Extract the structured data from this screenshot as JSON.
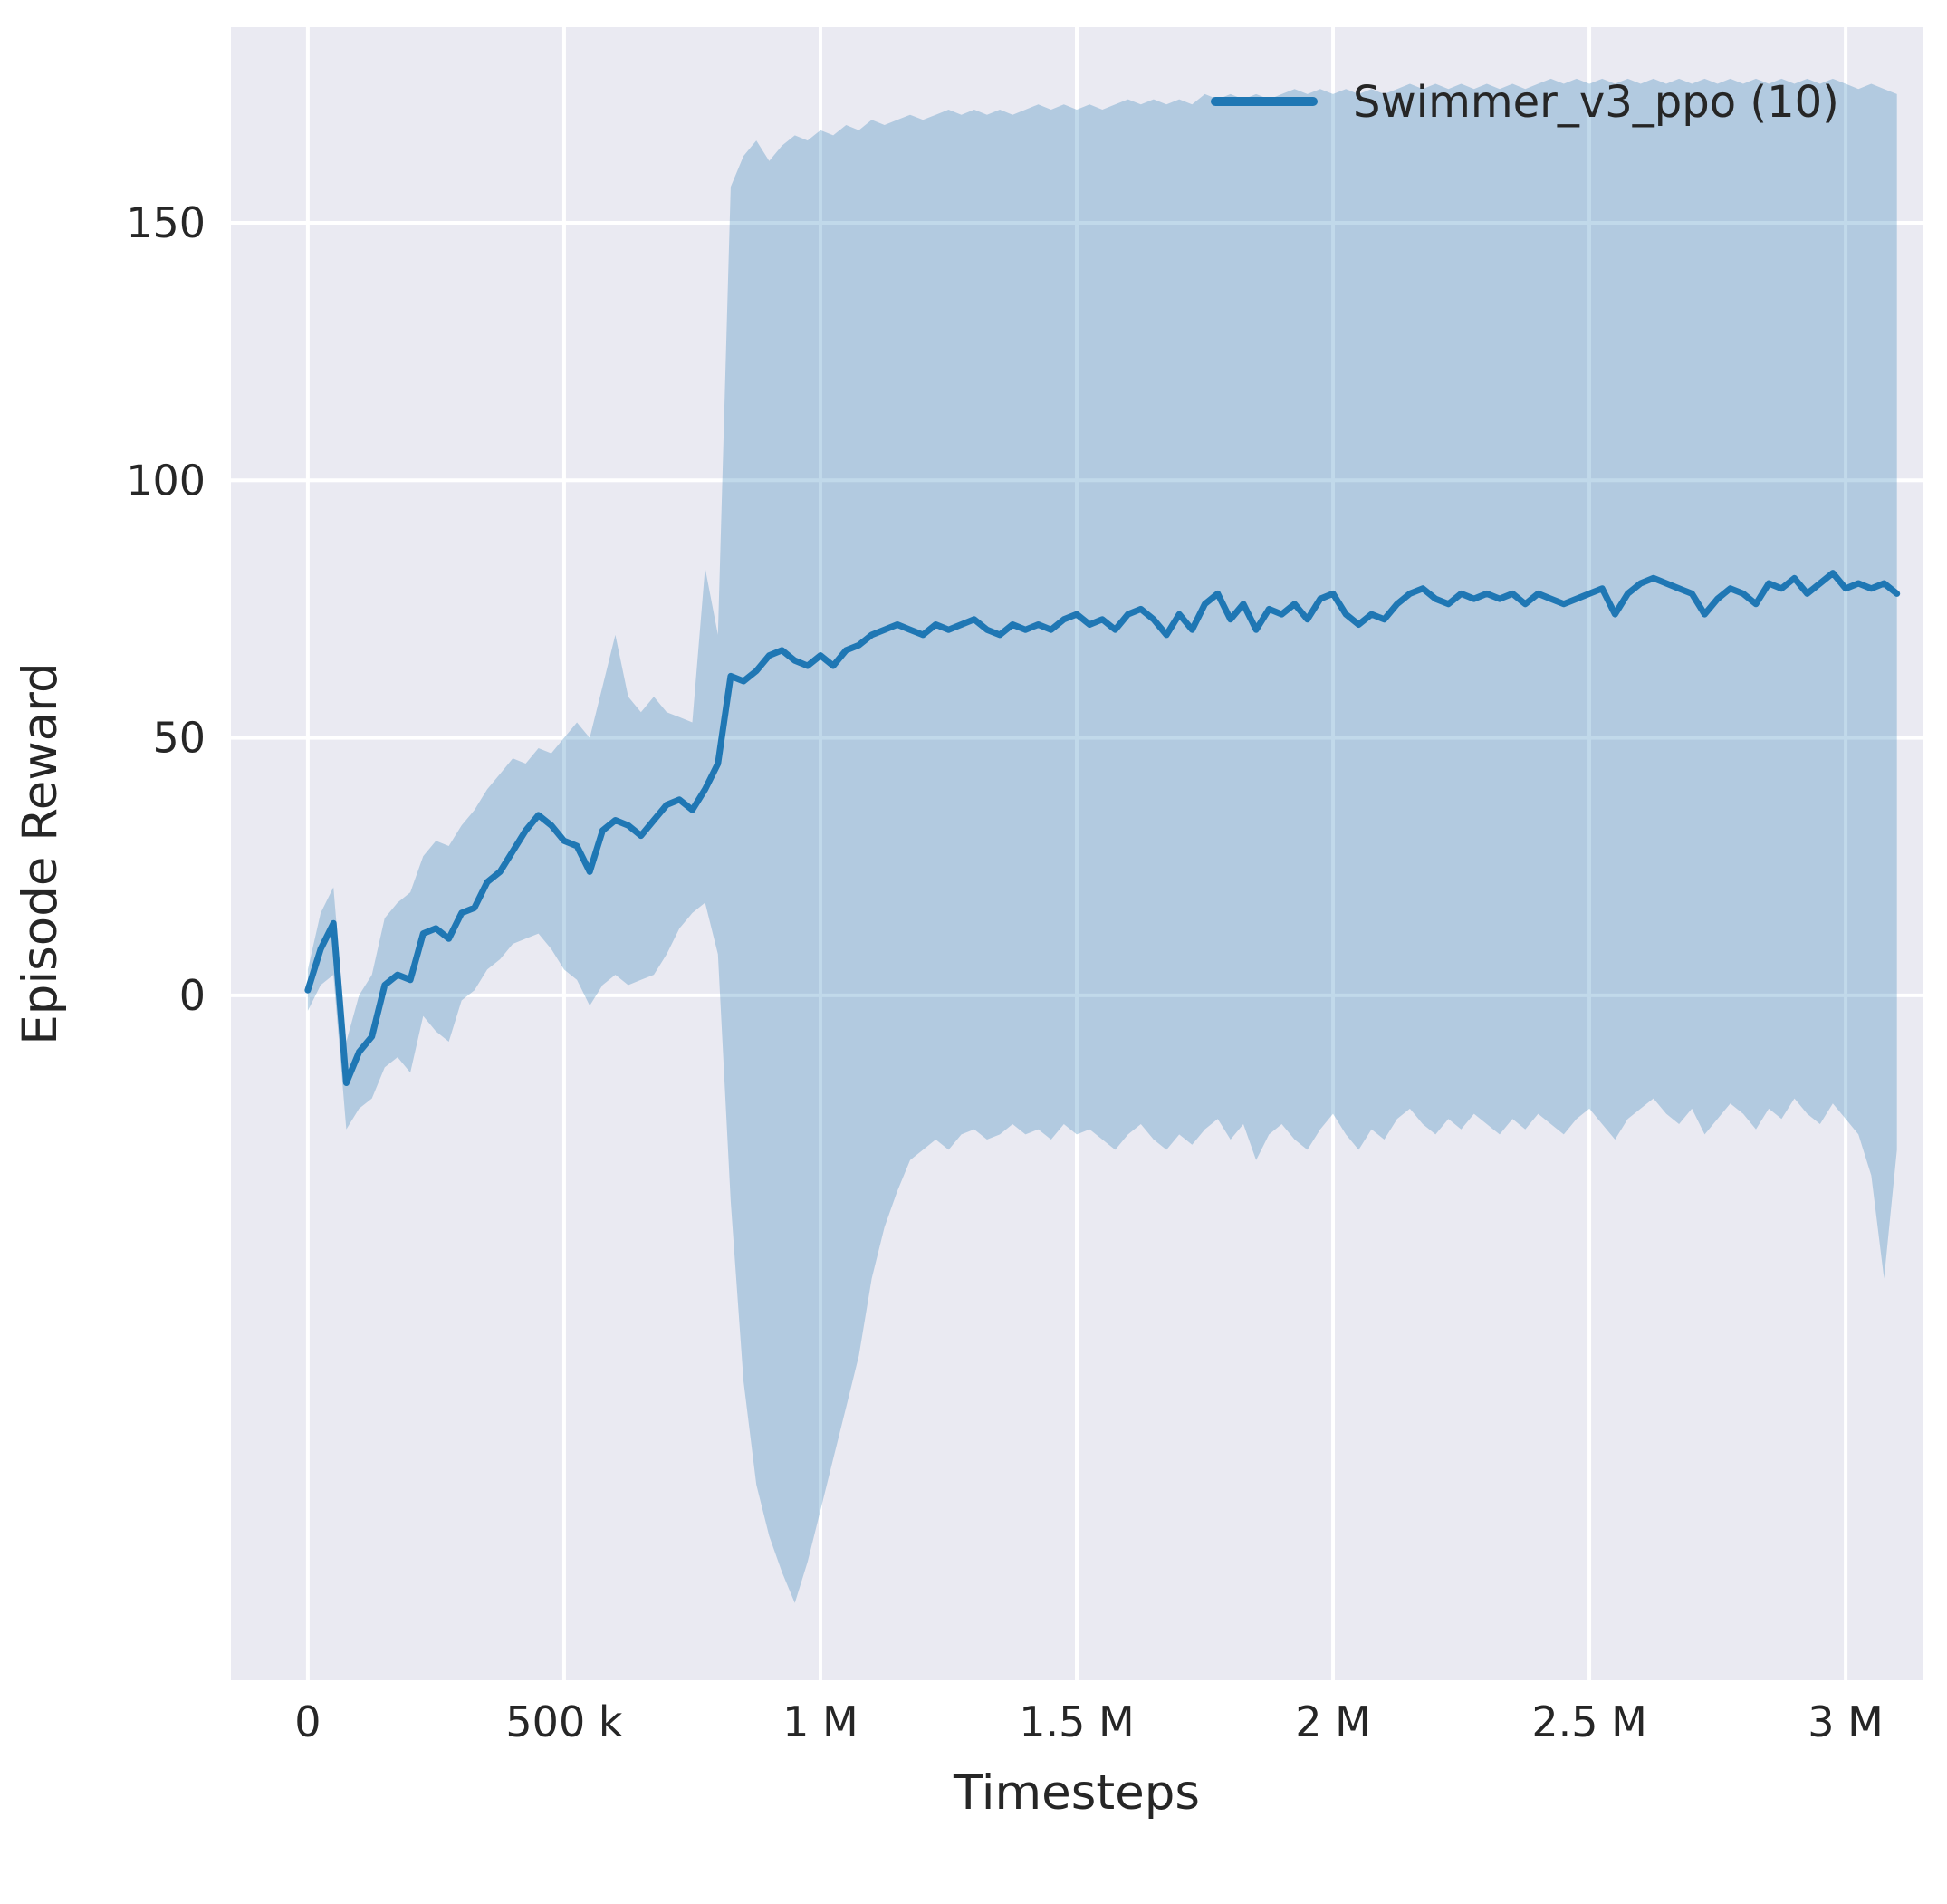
{
  "figure": {
    "background": "#ffffff",
    "axes_background": "#eaeaf2",
    "grid_color": "#ffffff",
    "text_color": "#262626",
    "accent_color": "#1f77b4"
  },
  "chart_data": {
    "type": "line",
    "title": "",
    "xlabel": "Timesteps",
    "ylabel": "Episode Reward",
    "xlim": [
      -150000,
      3150000
    ],
    "ylim": [
      -133,
      188
    ],
    "grid": true,
    "xticks": [
      {
        "value": 0,
        "label": "0"
      },
      {
        "value": 500000,
        "label": "500 k"
      },
      {
        "value": 1000000,
        "label": "1 M"
      },
      {
        "value": 1500000,
        "label": "1.5 M"
      },
      {
        "value": 2000000,
        "label": "2 M"
      },
      {
        "value": 2500000,
        "label": "2.5 M"
      },
      {
        "value": 3000000,
        "label": "3 M"
      }
    ],
    "yticks": [
      {
        "value": 0,
        "label": "0"
      },
      {
        "value": 50,
        "label": "50"
      },
      {
        "value": 100,
        "label": "100"
      },
      {
        "value": 150,
        "label": "150"
      }
    ],
    "legend": {
      "location": "upper right",
      "entries": [
        {
          "label": "Swimmer_v3_ppo (10)",
          "color": "#1f77b4"
        }
      ]
    },
    "series": [
      {
        "name": "Swimmer_v3_ppo (10)",
        "color": "#1f77b4",
        "line_width": 7,
        "band_opacity": 0.28,
        "x": [
          0,
          25000,
          50000,
          75000,
          100000,
          125000,
          150000,
          175000,
          200000,
          225000,
          250000,
          275000,
          300000,
          325000,
          350000,
          375000,
          400000,
          425000,
          450000,
          475000,
          500000,
          525000,
          550000,
          575000,
          600000,
          625000,
          650000,
          675000,
          700000,
          725000,
          750000,
          775000,
          800000,
          825000,
          850000,
          875000,
          900000,
          925000,
          950000,
          975000,
          1000000,
          1025000,
          1050000,
          1075000,
          1100000,
          1125000,
          1150000,
          1175000,
          1200000,
          1225000,
          1250000,
          1275000,
          1300000,
          1325000,
          1350000,
          1375000,
          1400000,
          1425000,
          1450000,
          1475000,
          1500000,
          1525000,
          1550000,
          1575000,
          1600000,
          1625000,
          1650000,
          1675000,
          1700000,
          1725000,
          1750000,
          1775000,
          1800000,
          1825000,
          1850000,
          1875000,
          1900000,
          1925000,
          1950000,
          1975000,
          2000000,
          2025000,
          2050000,
          2075000,
          2100000,
          2125000,
          2150000,
          2175000,
          2200000,
          2225000,
          2250000,
          2275000,
          2300000,
          2325000,
          2350000,
          2375000,
          2400000,
          2425000,
          2450000,
          2475000,
          2500000,
          2525000,
          2550000,
          2575000,
          2600000,
          2625000,
          2650000,
          2675000,
          2700000,
          2725000,
          2750000,
          2775000,
          2800000,
          2825000,
          2850000,
          2875000,
          2900000,
          2925000,
          2950000,
          2975000,
          3000000,
          3025000,
          3050000,
          3075000,
          3100000
        ],
        "mean": [
          1,
          9,
          14,
          -17,
          -11,
          -8,
          2,
          4,
          3,
          12,
          13,
          11,
          16,
          17,
          22,
          24,
          28,
          32,
          35,
          33,
          30,
          29,
          24,
          32,
          34,
          33,
          31,
          34,
          37,
          38,
          36,
          40,
          45,
          62,
          61,
          63,
          66,
          67,
          65,
          64,
          66,
          64,
          67,
          68,
          70,
          71,
          72,
          71,
          70,
          72,
          71,
          72,
          73,
          71,
          70,
          72,
          71,
          72,
          71,
          73,
          74,
          72,
          73,
          71,
          74,
          75,
          73,
          70,
          74,
          71,
          76,
          78,
          73,
          76,
          71,
          75,
          74,
          76,
          73,
          77,
          78,
          74,
          72,
          74,
          73,
          76,
          78,
          79,
          77,
          76,
          78,
          77,
          78,
          77,
          78,
          76,
          78,
          77,
          76,
          77,
          78,
          79,
          74,
          78,
          80,
          81,
          80,
          79,
          78,
          74,
          77,
          79,
          78,
          76,
          80,
          79,
          81,
          78,
          80,
          82,
          79,
          80,
          79,
          80,
          78
        ],
        "lower": [
          -3,
          2,
          4,
          -26,
          -22,
          -20,
          -14,
          -12,
          -15,
          -4,
          -7,
          -9,
          -1,
          1,
          5,
          7,
          10,
          11,
          12,
          9,
          5,
          3,
          -2,
          2,
          4,
          2,
          3,
          4,
          8,
          13,
          16,
          18,
          8,
          -40,
          -75,
          -95,
          -105,
          -112,
          -118,
          -110,
          -100,
          -90,
          -80,
          -70,
          -55,
          -45,
          -38,
          -32,
          -30,
          -28,
          -30,
          -27,
          -26,
          -28,
          -27,
          -25,
          -27,
          -26,
          -28,
          -25,
          -27,
          -26,
          -28,
          -30,
          -27,
          -25,
          -28,
          -30,
          -27,
          -29,
          -26,
          -24,
          -28,
          -25,
          -32,
          -27,
          -25,
          -28,
          -30,
          -26,
          -23,
          -27,
          -30,
          -26,
          -28,
          -24,
          -22,
          -25,
          -27,
          -24,
          -26,
          -23,
          -25,
          -27,
          -24,
          -26,
          -23,
          -25,
          -27,
          -24,
          -22,
          -25,
          -28,
          -24,
          -22,
          -20,
          -23,
          -25,
          -22,
          -27,
          -24,
          -21,
          -23,
          -26,
          -22,
          -24,
          -20,
          -23,
          -25,
          -21,
          -24,
          -27,
          -35,
          -55,
          -30
        ],
        "upper": [
          5,
          16,
          21,
          -9,
          0,
          4,
          15,
          18,
          20,
          27,
          30,
          29,
          33,
          36,
          40,
          43,
          46,
          45,
          48,
          47,
          50,
          53,
          50,
          60,
          70,
          58,
          55,
          58,
          55,
          54,
          53,
          83,
          70,
          157,
          163,
          166,
          162,
          165,
          167,
          166,
          168,
          167,
          169,
          168,
          170,
          169,
          170,
          171,
          170,
          171,
          172,
          171,
          172,
          171,
          172,
          171,
          172,
          173,
          172,
          173,
          172,
          173,
          172,
          173,
          174,
          173,
          174,
          173,
          174,
          173,
          175,
          174,
          175,
          174,
          175,
          174,
          175,
          176,
          175,
          176,
          175,
          176,
          175,
          176,
          175,
          176,
          177,
          176,
          177,
          176,
          177,
          176,
          177,
          176,
          177,
          176,
          177,
          178,
          177,
          178,
          177,
          178,
          177,
          178,
          177,
          178,
          177,
          178,
          177,
          178,
          177,
          178,
          177,
          178,
          177,
          178,
          177,
          178,
          177,
          178,
          177,
          176,
          177,
          176,
          175
        ]
      }
    ]
  }
}
